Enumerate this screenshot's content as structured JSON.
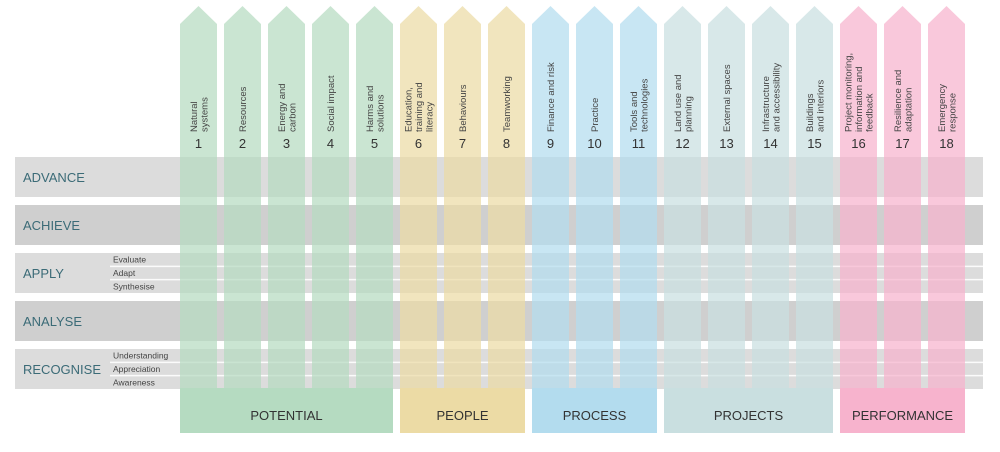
{
  "levels": [
    {
      "label": "ADVANCE",
      "sublabels": []
    },
    {
      "label": "ACHIEVE",
      "sublabels": []
    },
    {
      "label": "APPLY",
      "sublabels": [
        "Evaluate",
        "Adapt",
        "Synthesise"
      ]
    },
    {
      "label": "ANALYSE",
      "sublabels": []
    },
    {
      "label": "RECOGNISE",
      "sublabels": [
        "Understanding",
        "Appreciation",
        "Awareness"
      ]
    }
  ],
  "groups": [
    {
      "label": "POTENTIAL",
      "color": "#b5dbc1",
      "columns": [
        {
          "number": "1",
          "lines": [
            "Natural",
            "systems"
          ]
        },
        {
          "number": "2",
          "lines": [
            "Resources"
          ]
        },
        {
          "number": "3",
          "lines": [
            "Energy and",
            "carbon"
          ]
        },
        {
          "number": "4",
          "lines": [
            "Social impact"
          ]
        },
        {
          "number": "5",
          "lines": [
            "Harms and",
            "solutions"
          ]
        }
      ]
    },
    {
      "label": "PEOPLE",
      "color": "#ecdba5",
      "columns": [
        {
          "number": "6",
          "lines": [
            "Education,",
            "training and",
            "literacy"
          ]
        },
        {
          "number": "7",
          "lines": [
            "Behaviours"
          ]
        },
        {
          "number": "8",
          "lines": [
            "Teamworking"
          ]
        }
      ]
    },
    {
      "label": "PROCESS",
      "color": "#b3dcee",
      "columns": [
        {
          "number": "9",
          "lines": [
            "Finance and risk"
          ]
        },
        {
          "number": "10",
          "lines": [
            "Practice"
          ]
        },
        {
          "number": "11",
          "lines": [
            "Tools and",
            "technologies"
          ]
        }
      ]
    },
    {
      "label": "PROJECTS",
      "color": "#c9dfe0",
      "columns": [
        {
          "number": "12",
          "lines": [
            "Land use and",
            "planning"
          ]
        },
        {
          "number": "13",
          "lines": [
            "External spaces"
          ]
        },
        {
          "number": "14",
          "lines": [
            "Infrastructure",
            "and accessibility"
          ]
        },
        {
          "number": "15",
          "lines": [
            "Buildings",
            "and interiors"
          ]
        }
      ]
    },
    {
      "label": "PERFORMANCE",
      "color": "#f7b3cd",
      "columns": [
        {
          "number": "16",
          "lines": [
            "Project monitoring,",
            "information and",
            "feedback"
          ]
        },
        {
          "number": "17",
          "lines": [
            "Resilience and",
            "adaptation"
          ]
        },
        {
          "number": "18",
          "lines": [
            "Emergency",
            "response"
          ]
        }
      ]
    }
  ]
}
